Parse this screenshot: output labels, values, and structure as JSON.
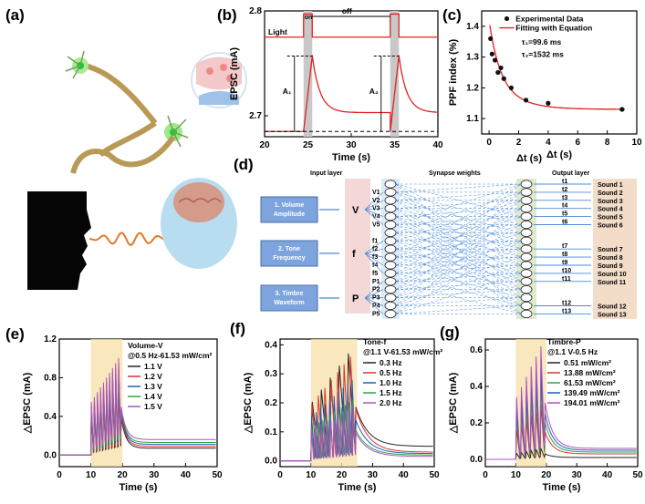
{
  "panels": {
    "a": {
      "label": "(a)"
    },
    "b": {
      "label": "(b)"
    },
    "c": {
      "label": "(c)"
    },
    "d": {
      "label": "(d)"
    },
    "e": {
      "label": "(e)"
    },
    "f": {
      "label": "(f)"
    },
    "g": {
      "label": "(g)"
    }
  },
  "diagram_d": {
    "inputs": [
      "1. Volume\nAmplitude",
      "2. Tone\nFrequency",
      "3. Timbre\nWaveform"
    ],
    "input_symbols": [
      "V",
      "f",
      "P"
    ],
    "input_layer_title": "Input layer",
    "synapse_title": "Synapse weights",
    "output_layer_title": "Output layer",
    "v_nodes": [
      "V1",
      "V2",
      "V3",
      "V4",
      "V5"
    ],
    "f_nodes": [
      "f1",
      "f2",
      "f3",
      "f4",
      "f5"
    ],
    "p_nodes": [
      "P1",
      "P2",
      "P3",
      "P4",
      "P5"
    ],
    "t_labels": [
      "t1",
      "t2",
      "t3",
      "t4",
      "t5",
      "t6",
      "t7",
      "t8",
      "t9",
      "t10",
      "t11",
      "t12",
      "t13"
    ],
    "sounds": [
      "Sound 1",
      "Sound 2",
      "Sound 3",
      "Sound 4",
      "Sound 5",
      "Sound 6",
      "Sound 7",
      "Sound 8",
      "Sound 9",
      "Sound 10",
      "Sound 11",
      "Sound 12",
      "Sound 13"
    ]
  },
  "chart_data": [
    {
      "id": "b",
      "type": "line",
      "xlabel": "Time (s)",
      "ylabel": "EPSC (mA)",
      "xlim": [
        20,
        40
      ],
      "ylim": [
        2.68,
        2.8
      ],
      "xticks": [
        20,
        25,
        30,
        35,
        40
      ],
      "yticks": [
        2.7,
        2.8
      ],
      "light_label": "Light",
      "on_label": "on",
      "off_label": "off",
      "a1_label": "A₁",
      "a2_label": "A₂",
      "pulses": [
        24.5,
        34.5
      ],
      "pulse_width": 1,
      "baseline": 2.685,
      "light_level": 2.775,
      "peaks": [
        2.757,
        2.757
      ]
    },
    {
      "id": "c",
      "type": "scatter",
      "xlabel": "Δt (s)",
      "ylabel": "PPF index (%)",
      "xlim": [
        -0.5,
        10
      ],
      "ylim": [
        1.05,
        1.45
      ],
      "xticks": [
        0,
        2,
        4,
        6,
        8,
        10
      ],
      "yticks": [
        1.1,
        1.2,
        1.3,
        1.4
      ],
      "legend": [
        "Experimental Data",
        "Fitting with Equation"
      ],
      "tau1": "τ₁=99.6 ms",
      "tau2": "τ₂=1532 ms",
      "points": [
        [
          0.1,
          1.36
        ],
        [
          0.2,
          1.31
        ],
        [
          0.4,
          1.29
        ],
        [
          0.6,
          1.25
        ],
        [
          0.8,
          1.265
        ],
        [
          1.0,
          1.23
        ],
        [
          1.5,
          1.2
        ],
        [
          2.5,
          1.16
        ],
        [
          4.0,
          1.15
        ],
        [
          9.0,
          1.13
        ]
      ]
    },
    {
      "id": "e",
      "type": "line",
      "title": "Volume-V",
      "subtitle": "@0.5 Hz-61.53 mW/cm²",
      "xlabel": "Time (s)",
      "ylabel": "△EPSC (mA)",
      "xlim": [
        0,
        50
      ],
      "ylim": [
        -0.12,
        1.2
      ],
      "xticks": [
        0,
        10,
        20,
        30,
        40,
        50
      ],
      "yticks": [
        0.0,
        0.4,
        0.8,
        1.2
      ],
      "stim": [
        10,
        20
      ],
      "n_pulses": 10,
      "series": [
        {
          "name": "1.1 V",
          "color": "#222222",
          "peak": 0.78,
          "tail": 0.07
        },
        {
          "name": "1.2 V",
          "color": "#e03030",
          "peak": 0.84,
          "tail": 0.09
        },
        {
          "name": "1.3 V",
          "color": "#1f5fb5",
          "peak": 0.9,
          "tail": 0.11
        },
        {
          "name": "1.4 V",
          "color": "#2ea04a",
          "peak": 0.95,
          "tail": 0.13
        },
        {
          "name": "1.5 V",
          "color": "#b050c0",
          "peak": 1.0,
          "tail": 0.16
        }
      ]
    },
    {
      "id": "f",
      "type": "line",
      "title": "Tone-f",
      "subtitle": "@1.1 V-61.53 mW/cm²",
      "xlabel": "Time (s)",
      "ylabel": "△EPSC (mA)",
      "xlim": [
        0,
        50
      ],
      "ylim": [
        -0.02,
        0.42
      ],
      "xticks": [
        0,
        10,
        20,
        30,
        40,
        50
      ],
      "yticks": [
        0.0,
        0.1,
        0.2,
        0.3,
        0.4
      ],
      "stim": [
        10,
        25
      ],
      "series": [
        {
          "name": "0.3 Hz",
          "color": "#222222",
          "peak": 0.37,
          "tail": 0.05,
          "pulses": 5
        },
        {
          "name": "0.5 Hz",
          "color": "#e03030",
          "peak": 0.36,
          "tail": 0.03,
          "pulses": 7
        },
        {
          "name": "1.0 Hz",
          "color": "#1f5fb5",
          "peak": 0.28,
          "tail": 0.025,
          "pulses": 10
        },
        {
          "name": "1.5 Hz",
          "color": "#2ea04a",
          "peak": 0.21,
          "tail": 0.02,
          "pulses": 12
        },
        {
          "name": "2.0 Hz",
          "color": "#b050c0",
          "peak": 0.19,
          "tail": 0.015,
          "pulses": 14
        }
      ]
    },
    {
      "id": "g",
      "type": "line",
      "title": "Timbre-P",
      "subtitle": "@1.1 V-0.5 Hz",
      "xlabel": "Time (s)",
      "ylabel": "△EPSC (mA)",
      "xlim": [
        0,
        50
      ],
      "ylim": [
        -0.04,
        0.66
      ],
      "xticks": [
        0,
        10,
        20,
        30,
        40,
        50
      ],
      "yticks": [
        0.0,
        0.2,
        0.4,
        0.6
      ],
      "stim": [
        10,
        20
      ],
      "n_pulses": 6,
      "series": [
        {
          "name": "0.51 mW/cm²",
          "color": "#222222",
          "peak": 0.06,
          "tail": 0.01
        },
        {
          "name": "13.88 mW/cm²",
          "color": "#e03030",
          "peak": 0.3,
          "tail": 0.03
        },
        {
          "name": "61.53 mW/cm²",
          "color": "#2ea04a",
          "peak": 0.4,
          "tail": 0.04
        },
        {
          "name": "139.49 mW/cm²",
          "color": "#1f5fb5",
          "peak": 0.5,
          "tail": 0.05
        },
        {
          "name": "194.01 mW/cm²",
          "color": "#b050c0",
          "peak": 0.62,
          "tail": 0.06
        }
      ]
    }
  ]
}
